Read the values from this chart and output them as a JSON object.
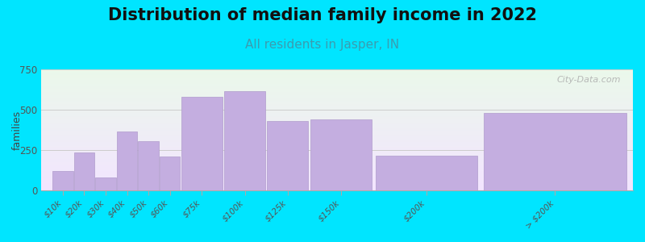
{
  "title": "Distribution of median family income in 2022",
  "subtitle": "All residents in Jasper, IN",
  "categories": [
    "$10k",
    "$20k",
    "$30k",
    "$40k",
    "$50k",
    "$60k",
    "$75k",
    "$100k",
    "$125k",
    "$150k",
    "$200k",
    "> $200k"
  ],
  "values": [
    120,
    235,
    80,
    365,
    305,
    210,
    580,
    615,
    430,
    440,
    215,
    480
  ],
  "bar_color": "#c4aee0",
  "bar_edge_color": "#b09ccc",
  "background_outer": "#00e5ff",
  "ylabel": "families",
  "ylim": [
    0,
    750
  ],
  "yticks": [
    0,
    250,
    500,
    750
  ],
  "title_fontsize": 15,
  "subtitle_fontsize": 11,
  "subtitle_color": "#3a9db0",
  "watermark": "City-Data.com",
  "left_edges": [
    0,
    1,
    2,
    3,
    4,
    5,
    6,
    8,
    10,
    12,
    15,
    20
  ],
  "bar_widths": [
    1,
    1,
    1,
    1,
    1,
    1,
    2,
    2,
    2,
    3,
    5,
    7
  ]
}
